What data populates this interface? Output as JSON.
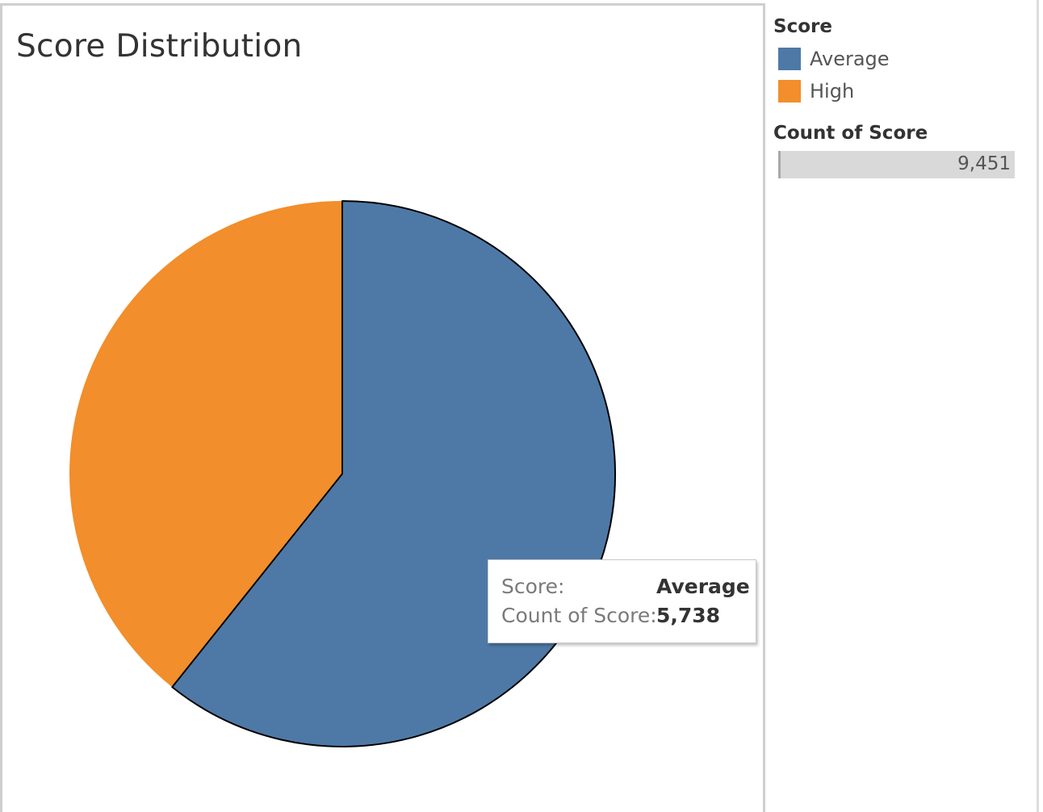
{
  "chart_data": {
    "type": "pie",
    "title": "Score Distribution",
    "total": 9451,
    "slices": [
      {
        "label": "Average",
        "value": 5738,
        "color": "#4e79a7"
      },
      {
        "label": "High",
        "value": 3713,
        "color": "#f28e2b"
      }
    ]
  },
  "legend": {
    "title": "Score",
    "items": [
      {
        "label": "Average",
        "color": "#4e79a7"
      },
      {
        "label": "High",
        "color": "#f28e2b"
      }
    ]
  },
  "size_legend": {
    "title": "Count of Score",
    "value": "9,451"
  },
  "tooltip": {
    "rows": [
      {
        "key": "Score:",
        "value": "Average"
      },
      {
        "key": "Count of Score:",
        "value": "5,738"
      }
    ]
  }
}
